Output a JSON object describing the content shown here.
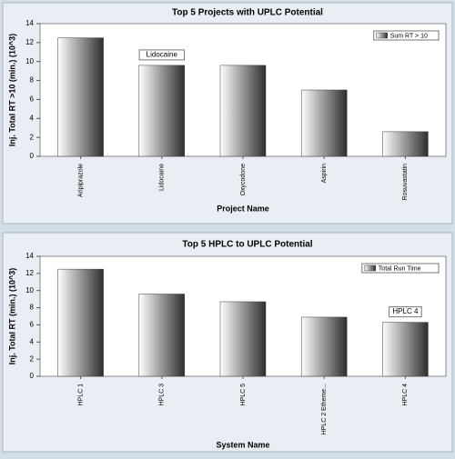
{
  "chart_data": [
    {
      "type": "bar",
      "title": "Top 5 Projects with UPLC Potential",
      "y_label": "Inj. Total RT >10 (min.) (10^3)",
      "x_label": "Project Name",
      "categories": [
        "Aripiprazole",
        "Lidocaine",
        "Oxycodone",
        "Aspirin",
        "Rosuvastatin"
      ],
      "series": [
        {
          "name": "Sum RT > 10",
          "color": "#3a3a3a",
          "values": [
            12.5,
            9.6,
            9.6,
            7.0,
            2.6
          ]
        }
      ],
      "annotation": "Lidocaine",
      "ylim": [
        0,
        14
      ],
      "yticks": [
        0,
        2,
        4,
        6,
        8,
        10,
        12,
        14
      ],
      "legend": "upper right"
    },
    {
      "type": "bar",
      "title": "Top 5 HPLC to UPLC Potential",
      "y_label": "Inj. Total RT (min.) (10^3)",
      "x_label": "System Name",
      "categories": [
        "HPLC 1",
        "HPLC 3",
        "HPLC 5",
        "HPLC 2 Etheme...",
        "HPLC 4"
      ],
      "series": [
        {
          "name": "Total Run Time",
          "color": "#3a3a3a",
          "values": [
            12.5,
            9.6,
            8.7,
            6.9,
            6.3
          ]
        }
      ],
      "annotation": "HPLC 4",
      "ylim": [
        0,
        14
      ],
      "yticks": [
        0,
        2,
        4,
        6,
        8,
        10,
        12,
        14
      ],
      "legend": "upper right"
    }
  ]
}
